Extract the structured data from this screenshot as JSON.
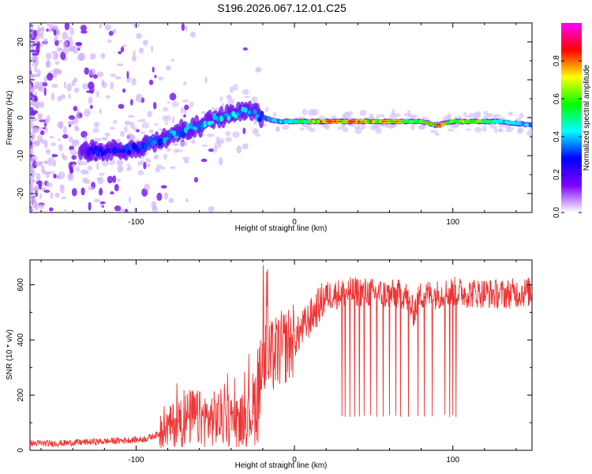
{
  "title": "S196.2026.067.12.01.C25",
  "colors": {
    "snr_line": "#ee3333",
    "frame": "#000000",
    "background": "#ffffff"
  },
  "chart_data": [
    {
      "type": "heatmap",
      "name": "spectrogram",
      "xlabel": "Height of straight line (km)",
      "ylabel": "Frequency (Hz)",
      "xlim": [
        -167,
        150
      ],
      "ylim": [
        -25,
        25
      ],
      "xticks": [
        -100,
        0,
        100
      ],
      "xtick_labels": [
        "-100",
        "0",
        "100"
      ],
      "yticks": [
        -20,
        -10,
        0,
        10,
        20
      ],
      "ytick_labels": [
        "-20",
        "-10",
        "0",
        "10",
        "20"
      ],
      "colorbar": {
        "label": "Normalized spectral amplitude",
        "range": [
          0,
          1
        ],
        "ticks": [
          0.0,
          0.2,
          0.4,
          0.6,
          0.8
        ],
        "tick_labels": [
          "0.0",
          "0.2",
          "0.4",
          "0.6",
          "0.8"
        ],
        "colormap": [
          "#ffffff",
          "#7f00ff",
          "#0000ff",
          "#00ffff",
          "#00ff00",
          "#ffff00",
          "#ff0000",
          "#ff00ff"
        ]
      },
      "track": {
        "description_free": false,
        "x": [
          -120,
          -100,
          -80,
          -60,
          -40,
          -30,
          -20,
          -10,
          0,
          20,
          40,
          60,
          80,
          90,
          100,
          110,
          130,
          150
        ],
        "y": [
          -9,
          -8,
          -5,
          -2,
          1,
          2,
          0,
          -1,
          -1,
          -1,
          -1,
          -1,
          -1,
          -2,
          -1,
          -1,
          -1,
          -2
        ],
        "peak_amplitude": [
          0.35,
          0.4,
          0.45,
          0.5,
          0.55,
          0.5,
          0.45,
          0.5,
          0.6,
          0.95,
          0.9,
          0.85,
          0.75,
          0.9,
          0.7,
          0.85,
          0.55,
          0.5
        ]
      }
    },
    {
      "type": "line",
      "name": "snr",
      "xlabel": "Height of straight line (km)",
      "ylabel": "SNR (10 * v/v)",
      "xlim": [
        -167,
        150
      ],
      "ylim": [
        0,
        690
      ],
      "xticks": [
        -100,
        0,
        100
      ],
      "xtick_labels": [
        "-100",
        "0",
        "100"
      ],
      "yticks": [
        0,
        200,
        400,
        600
      ],
      "ytick_labels": [
        "0",
        "200",
        "400",
        "600"
      ],
      "x": [
        -167,
        -150,
        -130,
        -110,
        -95,
        -85,
        -75,
        -65,
        -55,
        -45,
        -35,
        -25,
        -20,
        -15,
        -10,
        -5,
        0,
        10,
        20,
        30,
        40,
        50,
        60,
        70,
        75,
        80,
        90,
        100,
        110,
        120,
        130,
        140,
        150
      ],
      "values": [
        25,
        25,
        30,
        35,
        40,
        60,
        100,
        120,
        110,
        120,
        100,
        160,
        330,
        330,
        360,
        380,
        400,
        480,
        560,
        570,
        575,
        570,
        565,
        565,
        500,
        565,
        565,
        575,
        570,
        570,
        565,
        570,
        575
      ],
      "dropouts_x": [
        30,
        32,
        35,
        38,
        41,
        44,
        48,
        52,
        56,
        60,
        64,
        67,
        72,
        78,
        82,
        87,
        95,
        98,
        100,
        102
      ],
      "dropouts_min": 120
    }
  ]
}
